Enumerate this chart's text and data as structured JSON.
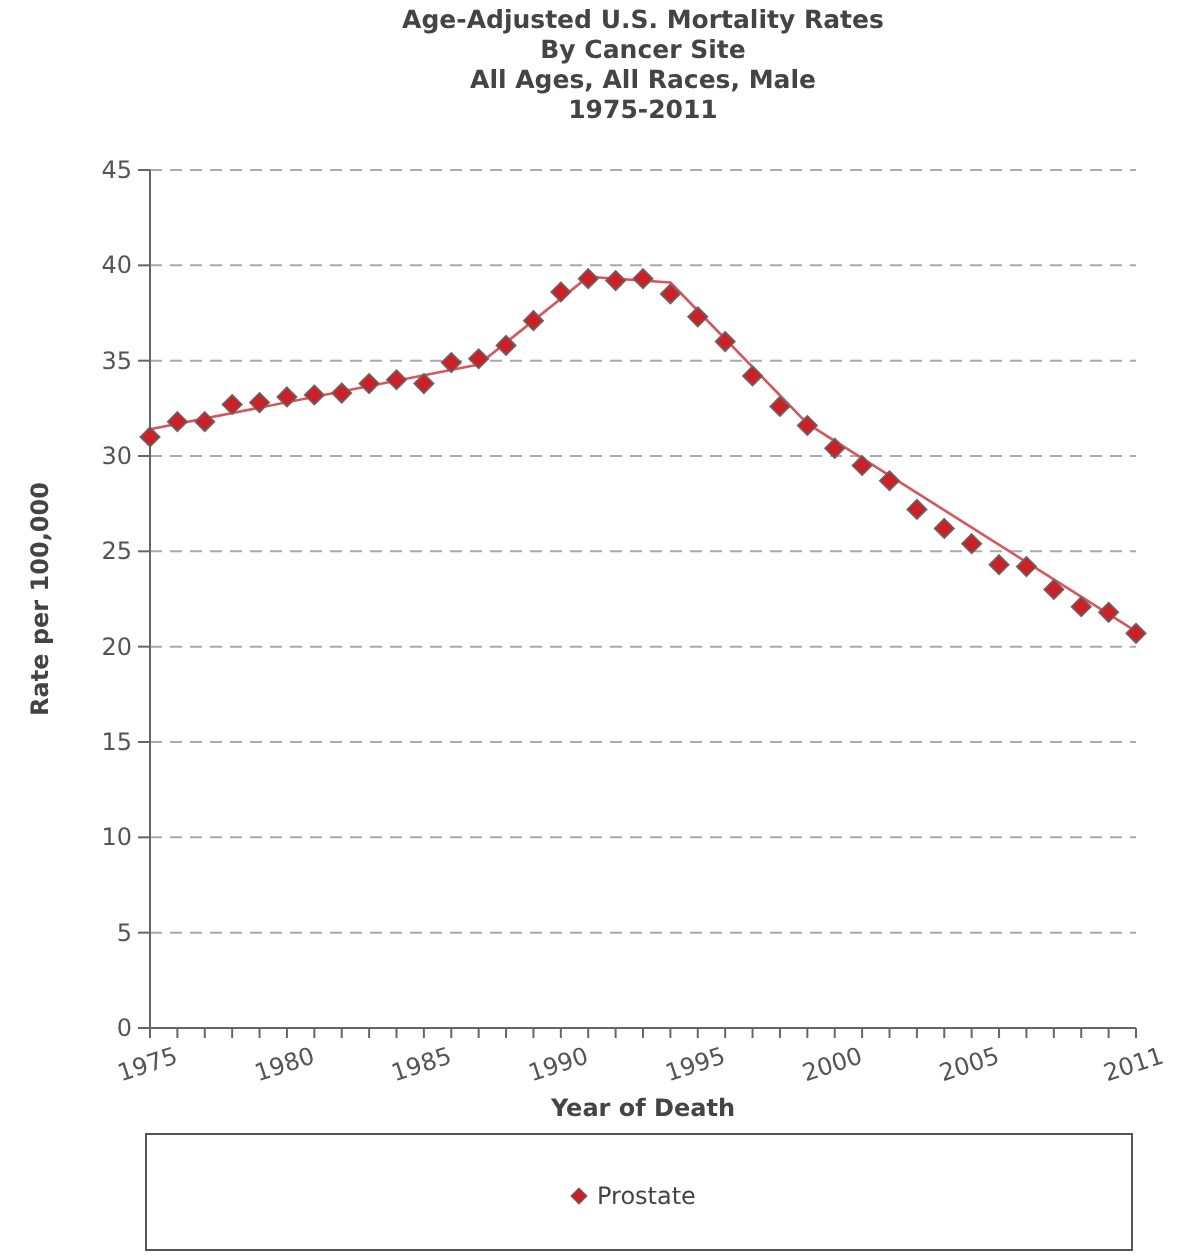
{
  "chart_data": {
    "type": "scatter",
    "title": "Age-Adjusted U.S. Mortality Rates\nBy Cancer Site\nAll Ages, All Races, Male\n1975-2011",
    "xlabel": "Year of Death",
    "ylabel": "Rate per 100,000",
    "x": [
      1975,
      1976,
      1977,
      1978,
      1979,
      1980,
      1981,
      1982,
      1983,
      1984,
      1985,
      1986,
      1987,
      1988,
      1989,
      1990,
      1991,
      1992,
      1993,
      1994,
      1995,
      1996,
      1997,
      1998,
      1999,
      2000,
      2001,
      2002,
      2003,
      2004,
      2005,
      2006,
      2007,
      2008,
      2009,
      2010,
      2011
    ],
    "series": [
      {
        "name": "Prostate",
        "color": "#cc1f26",
        "marker": "diamond",
        "values": [
          31.0,
          31.8,
          31.8,
          32.7,
          32.8,
          33.1,
          33.2,
          33.3,
          33.8,
          34.0,
          33.8,
          34.9,
          35.1,
          35.8,
          37.1,
          38.6,
          39.3,
          39.2,
          39.3,
          38.5,
          37.3,
          36.0,
          34.2,
          32.6,
          31.6,
          30.4,
          29.5,
          28.7,
          27.2,
          26.2,
          25.4,
          24.3,
          24.2,
          23.0,
          22.1,
          21.8,
          20.7
        ]
      },
      {
        "type": "line",
        "color": "#d9555a",
        "marker": "none",
        "line_style": "solid",
        "x": [
          1975,
          1987,
          1991,
          1994,
          1999,
          2011
        ],
        "values": [
          31.4,
          34.8,
          39.4,
          39.1,
          31.7,
          20.8
        ]
      }
    ],
    "xlim": [
      1975,
      2011
    ],
    "xticks": [
      1975,
      {
        "value": 1976,
        "label": null
      },
      {
        "value": 1977,
        "label": null
      },
      {
        "value": 1978,
        "label": null
      },
      {
        "value": 1979,
        "label": null
      },
      1980,
      {
        "value": 1981,
        "label": null
      },
      {
        "value": 1982,
        "label": null
      },
      {
        "value": 1983,
        "label": null
      },
      {
        "value": 1984,
        "label": null
      },
      1985,
      {
        "value": 1986,
        "label": null
      },
      {
        "value": 1987,
        "label": null
      },
      {
        "value": 1988,
        "label": null
      },
      {
        "value": 1989,
        "label": null
      },
      1990,
      {
        "value": 1991,
        "label": null
      },
      {
        "value": 1992,
        "label": null
      },
      {
        "value": 1993,
        "label": null
      },
      {
        "value": 1994,
        "label": null
      },
      1995,
      {
        "value": 1996,
        "label": null
      },
      {
        "value": 1997,
        "label": null
      },
      {
        "value": 1998,
        "label": null
      },
      {
        "value": 1999,
        "label": null
      },
      2000,
      {
        "value": 2001,
        "label": null
      },
      {
        "value": 2002,
        "label": null
      },
      {
        "value": 2003,
        "label": null
      },
      {
        "value": 2004,
        "label": null
      },
      2005,
      {
        "value": 2006,
        "label": null
      },
      {
        "value": 2007,
        "label": null
      },
      {
        "value": 2008,
        "label": null
      },
      {
        "value": 2009,
        "label": null
      },
      {
        "value": 2010,
        "label": null
      },
      2011
    ],
    "ylim": [
      0,
      45
    ],
    "yticks": [
      0,
      5,
      10,
      15,
      20,
      25,
      30,
      35,
      40,
      45
    ],
    "grid": "y",
    "legend": "bottom"
  }
}
